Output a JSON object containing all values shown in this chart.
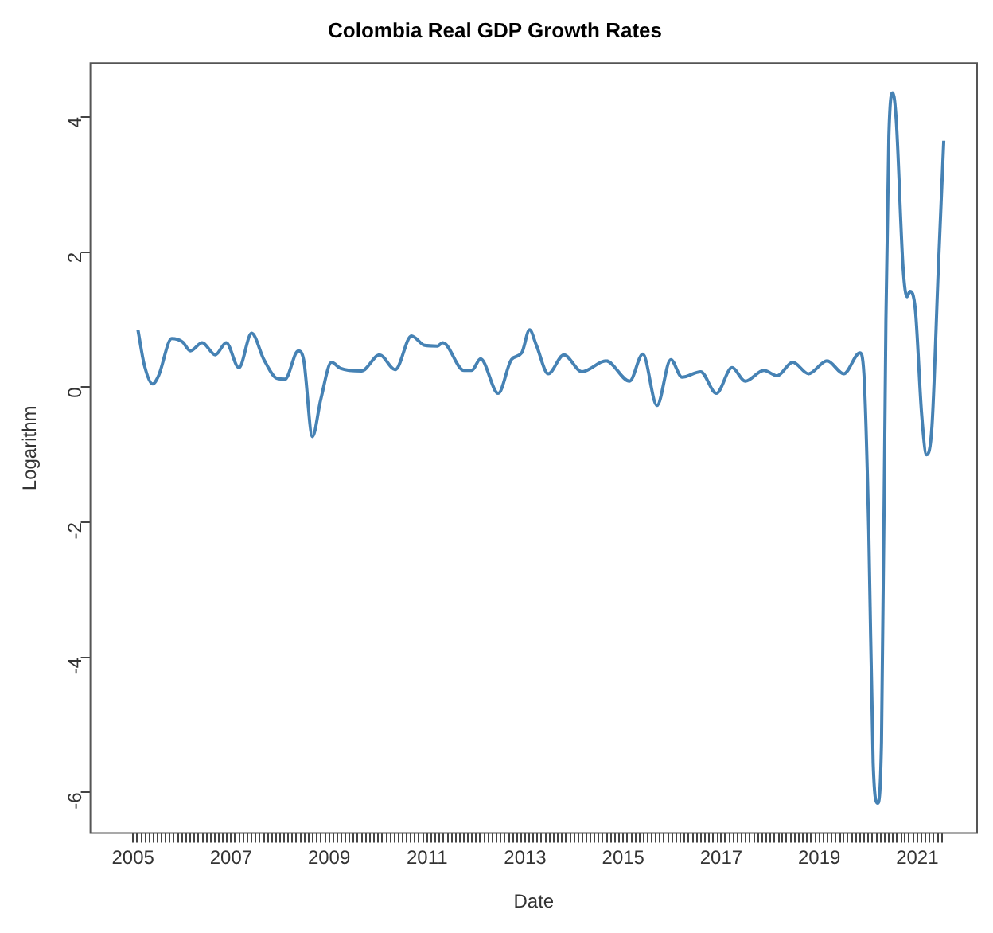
{
  "chart_data": {
    "type": "line",
    "title": "Colombia Real GDP Growth Rates",
    "xlabel": "Date",
    "ylabel": "Logarithm",
    "grid": false,
    "legend": false,
    "marker": "none",
    "line_style": "solid",
    "xlim": [
      2004.13,
      2022.22
    ],
    "ylim": [
      -6.6,
      4.8
    ],
    "yticks": [
      {
        "value": -6,
        "label": "-6"
      },
      {
        "value": -4,
        "label": "-4"
      },
      {
        "value": -2,
        "label": "-2"
      },
      0,
      2,
      4
    ],
    "xticks": [
      2005,
      {
        "value": 2005.08,
        "label": null
      },
      {
        "value": 2005.17,
        "label": null
      },
      {
        "value": 2005.25,
        "label": null
      },
      {
        "value": 2005.33,
        "label": null
      },
      {
        "value": 2005.42,
        "label": null
      },
      {
        "value": 2005.5,
        "label": null
      },
      {
        "value": 2005.58,
        "label": null
      },
      {
        "value": 2005.67,
        "label": null
      },
      {
        "value": 2005.75,
        "label": null
      },
      {
        "value": 2005.83,
        "label": null
      },
      {
        "value": 2005.92,
        "label": null
      },
      {
        "value": 2006,
        "label": null
      },
      {
        "value": 2006.08,
        "label": null
      },
      {
        "value": 2006.17,
        "label": null
      },
      {
        "value": 2006.25,
        "label": null
      },
      {
        "value": 2006.33,
        "label": null
      },
      {
        "value": 2006.42,
        "label": null
      },
      {
        "value": 2006.5,
        "label": null
      },
      {
        "value": 2006.58,
        "label": null
      },
      {
        "value": 2006.67,
        "label": null
      },
      {
        "value": 2006.75,
        "label": null
      },
      {
        "value": 2006.83,
        "label": null
      },
      {
        "value": 2006.92,
        "label": null
      },
      2007,
      {
        "value": 2007.08,
        "label": null
      },
      {
        "value": 2007.17,
        "label": null
      },
      {
        "value": 2007.25,
        "label": null
      },
      {
        "value": 2007.33,
        "label": null
      },
      {
        "value": 2007.42,
        "label": null
      },
      {
        "value": 2007.5,
        "label": null
      },
      {
        "value": 2007.58,
        "label": null
      },
      {
        "value": 2007.67,
        "label": null
      },
      {
        "value": 2007.75,
        "label": null
      },
      {
        "value": 2007.83,
        "label": null
      },
      {
        "value": 2007.92,
        "label": null
      },
      {
        "value": 2008,
        "label": null
      },
      {
        "value": 2008.08,
        "label": null
      },
      {
        "value": 2008.17,
        "label": null
      },
      {
        "value": 2008.25,
        "label": null
      },
      {
        "value": 2008.33,
        "label": null
      },
      {
        "value": 2008.42,
        "label": null
      },
      {
        "value": 2008.5,
        "label": null
      },
      {
        "value": 2008.58,
        "label": null
      },
      {
        "value": 2008.67,
        "label": null
      },
      {
        "value": 2008.75,
        "label": null
      },
      {
        "value": 2008.83,
        "label": null
      },
      {
        "value": 2008.92,
        "label": null
      },
      2009,
      {
        "value": 2009.08,
        "label": null
      },
      {
        "value": 2009.17,
        "label": null
      },
      {
        "value": 2009.25,
        "label": null
      },
      {
        "value": 2009.33,
        "label": null
      },
      {
        "value": 2009.42,
        "label": null
      },
      {
        "value": 2009.5,
        "label": null
      },
      {
        "value": 2009.58,
        "label": null
      },
      {
        "value": 2009.67,
        "label": null
      },
      {
        "value": 2009.75,
        "label": null
      },
      {
        "value": 2009.83,
        "label": null
      },
      {
        "value": 2009.92,
        "label": null
      },
      {
        "value": 2010,
        "label": null
      },
      {
        "value": 2010.08,
        "label": null
      },
      {
        "value": 2010.17,
        "label": null
      },
      {
        "value": 2010.25,
        "label": null
      },
      {
        "value": 2010.33,
        "label": null
      },
      {
        "value": 2010.42,
        "label": null
      },
      {
        "value": 2010.5,
        "label": null
      },
      {
        "value": 2010.58,
        "label": null
      },
      {
        "value": 2010.67,
        "label": null
      },
      {
        "value": 2010.75,
        "label": null
      },
      {
        "value": 2010.83,
        "label": null
      },
      {
        "value": 2010.92,
        "label": null
      },
      2011,
      {
        "value": 2011.08,
        "label": null
      },
      {
        "value": 2011.17,
        "label": null
      },
      {
        "value": 2011.25,
        "label": null
      },
      {
        "value": 2011.33,
        "label": null
      },
      {
        "value": 2011.42,
        "label": null
      },
      {
        "value": 2011.5,
        "label": null
      },
      {
        "value": 2011.58,
        "label": null
      },
      {
        "value": 2011.67,
        "label": null
      },
      {
        "value": 2011.75,
        "label": null
      },
      {
        "value": 2011.83,
        "label": null
      },
      {
        "value": 2011.92,
        "label": null
      },
      {
        "value": 2012,
        "label": null
      },
      {
        "value": 2012.08,
        "label": null
      },
      {
        "value": 2012.17,
        "label": null
      },
      {
        "value": 2012.25,
        "label": null
      },
      {
        "value": 2012.33,
        "label": null
      },
      {
        "value": 2012.42,
        "label": null
      },
      {
        "value": 2012.5,
        "label": null
      },
      {
        "value": 2012.58,
        "label": null
      },
      {
        "value": 2012.67,
        "label": null
      },
      {
        "value": 2012.75,
        "label": null
      },
      {
        "value": 2012.83,
        "label": null
      },
      {
        "value": 2012.92,
        "label": null
      },
      2013,
      {
        "value": 2013.08,
        "label": null
      },
      {
        "value": 2013.17,
        "label": null
      },
      {
        "value": 2013.25,
        "label": null
      },
      {
        "value": 2013.33,
        "label": null
      },
      {
        "value": 2013.42,
        "label": null
      },
      {
        "value": 2013.5,
        "label": null
      },
      {
        "value": 2013.58,
        "label": null
      },
      {
        "value": 2013.67,
        "label": null
      },
      {
        "value": 2013.75,
        "label": null
      },
      {
        "value": 2013.83,
        "label": null
      },
      {
        "value": 2013.92,
        "label": null
      },
      {
        "value": 2014,
        "label": null
      },
      {
        "value": 2014.08,
        "label": null
      },
      {
        "value": 2014.17,
        "label": null
      },
      {
        "value": 2014.25,
        "label": null
      },
      {
        "value": 2014.33,
        "label": null
      },
      {
        "value": 2014.42,
        "label": null
      },
      {
        "value": 2014.5,
        "label": null
      },
      {
        "value": 2014.58,
        "label": null
      },
      {
        "value": 2014.67,
        "label": null
      },
      {
        "value": 2014.75,
        "label": null
      },
      {
        "value": 2014.83,
        "label": null
      },
      {
        "value": 2014.92,
        "label": null
      },
      2015,
      {
        "value": 2015.08,
        "label": null
      },
      {
        "value": 2015.17,
        "label": null
      },
      {
        "value": 2015.25,
        "label": null
      },
      {
        "value": 2015.33,
        "label": null
      },
      {
        "value": 2015.42,
        "label": null
      },
      {
        "value": 2015.5,
        "label": null
      },
      {
        "value": 2015.58,
        "label": null
      },
      {
        "value": 2015.67,
        "label": null
      },
      {
        "value": 2015.75,
        "label": null
      },
      {
        "value": 2015.83,
        "label": null
      },
      {
        "value": 2015.92,
        "label": null
      },
      {
        "value": 2016,
        "label": null
      },
      {
        "value": 2016.08,
        "label": null
      },
      {
        "value": 2016.17,
        "label": null
      },
      {
        "value": 2016.25,
        "label": null
      },
      {
        "value": 2016.33,
        "label": null
      },
      {
        "value": 2016.42,
        "label": null
      },
      {
        "value": 2016.5,
        "label": null
      },
      {
        "value": 2016.58,
        "label": null
      },
      {
        "value": 2016.67,
        "label": null
      },
      {
        "value": 2016.75,
        "label": null
      },
      {
        "value": 2016.83,
        "label": null
      },
      {
        "value": 2016.92,
        "label": null
      },
      2017,
      {
        "value": 2017.08,
        "label": null
      },
      {
        "value": 2017.17,
        "label": null
      },
      {
        "value": 2017.25,
        "label": null
      },
      {
        "value": 2017.33,
        "label": null
      },
      {
        "value": 2017.42,
        "label": null
      },
      {
        "value": 2017.5,
        "label": null
      },
      {
        "value": 2017.58,
        "label": null
      },
      {
        "value": 2017.67,
        "label": null
      },
      {
        "value": 2017.75,
        "label": null
      },
      {
        "value": 2017.83,
        "label": null
      },
      {
        "value": 2017.92,
        "label": null
      },
      {
        "value": 2018,
        "label": null
      },
      {
        "value": 2018.08,
        "label": null
      },
      {
        "value": 2018.17,
        "label": null
      },
      {
        "value": 2018.25,
        "label": null
      },
      {
        "value": 2018.33,
        "label": null
      },
      {
        "value": 2018.42,
        "label": null
      },
      {
        "value": 2018.5,
        "label": null
      },
      {
        "value": 2018.58,
        "label": null
      },
      {
        "value": 2018.67,
        "label": null
      },
      {
        "value": 2018.75,
        "label": null
      },
      {
        "value": 2018.83,
        "label": null
      },
      {
        "value": 2018.92,
        "label": null
      },
      2019,
      {
        "value": 2019.08,
        "label": null
      },
      {
        "value": 2019.17,
        "label": null
      },
      {
        "value": 2019.25,
        "label": null
      },
      {
        "value": 2019.33,
        "label": null
      },
      {
        "value": 2019.42,
        "label": null
      },
      {
        "value": 2019.5,
        "label": null
      },
      {
        "value": 2019.58,
        "label": null
      },
      {
        "value": 2019.67,
        "label": null
      },
      {
        "value": 2019.75,
        "label": null
      },
      {
        "value": 2019.83,
        "label": null
      },
      {
        "value": 2019.92,
        "label": null
      },
      {
        "value": 2020,
        "label": null
      },
      {
        "value": 2020.08,
        "label": null
      },
      {
        "value": 2020.17,
        "label": null
      },
      {
        "value": 2020.25,
        "label": null
      },
      {
        "value": 2020.33,
        "label": null
      },
      {
        "value": 2020.42,
        "label": null
      },
      {
        "value": 2020.5,
        "label": null
      },
      {
        "value": 2020.58,
        "label": null
      },
      {
        "value": 2020.67,
        "label": null
      },
      {
        "value": 2020.75,
        "label": null
      },
      {
        "value": 2020.83,
        "label": null
      },
      {
        "value": 2020.92,
        "label": null
      },
      2021,
      {
        "value": 2021.08,
        "label": null
      },
      {
        "value": 2021.17,
        "label": null
      },
      {
        "value": 2021.25,
        "label": null
      },
      {
        "value": 2021.33,
        "label": null
      },
      {
        "value": 2021.42,
        "label": null
      },
      {
        "value": 2021.5,
        "label": null
      }
    ],
    "x": [
      2005.1,
      2005.23,
      2005.4,
      2005.52,
      2005.79,
      2006.01,
      2006.17,
      2006.41,
      2006.68,
      2006.9,
      2007.16,
      2007.42,
      2007.67,
      2007.94,
      2008.1,
      2008.37,
      2008.48,
      2008.66,
      2008.83,
      2009.05,
      2009.23,
      2009.66,
      2010.03,
      2010.35,
      2010.68,
      2010.95,
      2011.21,
      2011.32,
      2011.75,
      2011.91,
      2012.09,
      2012.45,
      2012.72,
      2012.93,
      2013.09,
      2013.23,
      2013.47,
      2013.79,
      2014.16,
      2014.65,
      2015.13,
      2015.4,
      2015.69,
      2015.97,
      2016.2,
      2016.58,
      2016.9,
      2017.22,
      2017.49,
      2017.87,
      2018.14,
      2018.46,
      2018.78,
      2019.16,
      2019.5,
      2019.83,
      2019.91,
      2020.01,
      2020.1,
      2020.19,
      2020.27,
      2020.36,
      2020.42,
      2020.5,
      2020.57,
      2020.71,
      2020.79,
      2020.85,
      2020.96,
      2021.09,
      2021.19,
      2021.3,
      2021.43,
      2021.54
    ],
    "series": [
      {
        "color": "#4682b4",
        "values": [
          0.85,
          0.33,
          0.05,
          0.17,
          0.72,
          0.67,
          0.54,
          0.66,
          0.48,
          0.66,
          0.29,
          0.8,
          0.41,
          0.13,
          0.12,
          0.54,
          0.41,
          -0.73,
          -0.18,
          0.37,
          0.28,
          0.24,
          0.48,
          0.26,
          0.76,
          0.62,
          0.61,
          0.66,
          0.25,
          0.25,
          0.42,
          -0.09,
          0.41,
          0.51,
          0.85,
          0.62,
          0.2,
          0.48,
          0.23,
          0.39,
          0.09,
          0.49,
          -0.27,
          0.41,
          0.15,
          0.23,
          -0.09,
          0.29,
          0.09,
          0.25,
          0.17,
          0.37,
          0.2,
          0.39,
          0.2,
          0.51,
          0.21,
          -2.13,
          -5.57,
          -6.16,
          -5.25,
          0.99,
          3.72,
          4.36,
          3.96,
          1.77,
          1.34,
          1.42,
          1.15,
          -0.41,
          -1.0,
          -0.57,
          1.77,
          3.65
        ]
      }
    ]
  }
}
